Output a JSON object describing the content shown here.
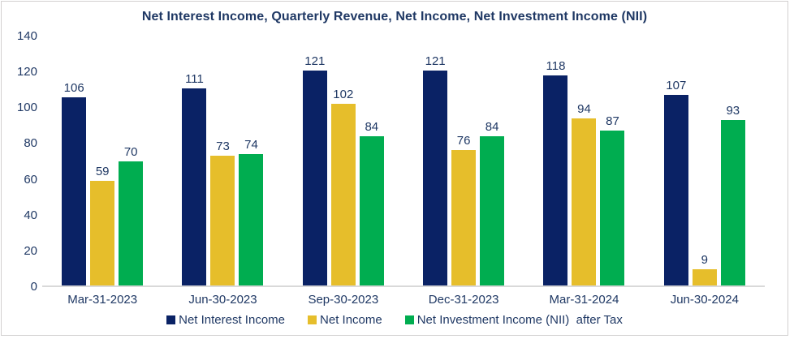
{
  "chart_data": {
    "type": "bar",
    "title": "Net Interest Income, Quarterly Revenue, Net Income, Net Investment Income (NII)",
    "categories": [
      "Mar-31-2023",
      "Jun-30-2023",
      "Sep-30-2023",
      "Dec-31-2023",
      "Mar-31-2024",
      "Jun-30-2024"
    ],
    "series": [
      {
        "name": "Net Interest Income",
        "color": "#0a2265",
        "values": [
          106,
          111,
          121,
          121,
          118,
          107
        ]
      },
      {
        "name": "Net Income",
        "color": "#e6be2b",
        "values": [
          59,
          73,
          102,
          76,
          94,
          9
        ]
      },
      {
        "name": "Net Investment Income (NII)  after Tax",
        "color": "#00ad50",
        "values": [
          70,
          74,
          84,
          84,
          87,
          93
        ]
      }
    ],
    "xlabel": "",
    "ylabel": "",
    "ylim": [
      0,
      140
    ],
    "yticks": [
      0,
      20,
      40,
      60,
      80,
      100,
      120,
      140
    ],
    "grid": false,
    "data_labels": true,
    "legend_position": "bottom",
    "colors": {
      "text": "#1f3864",
      "axis_line": "#d9d9d9",
      "frame_border": "#d2d0d0",
      "background": "#ffffff"
    }
  }
}
